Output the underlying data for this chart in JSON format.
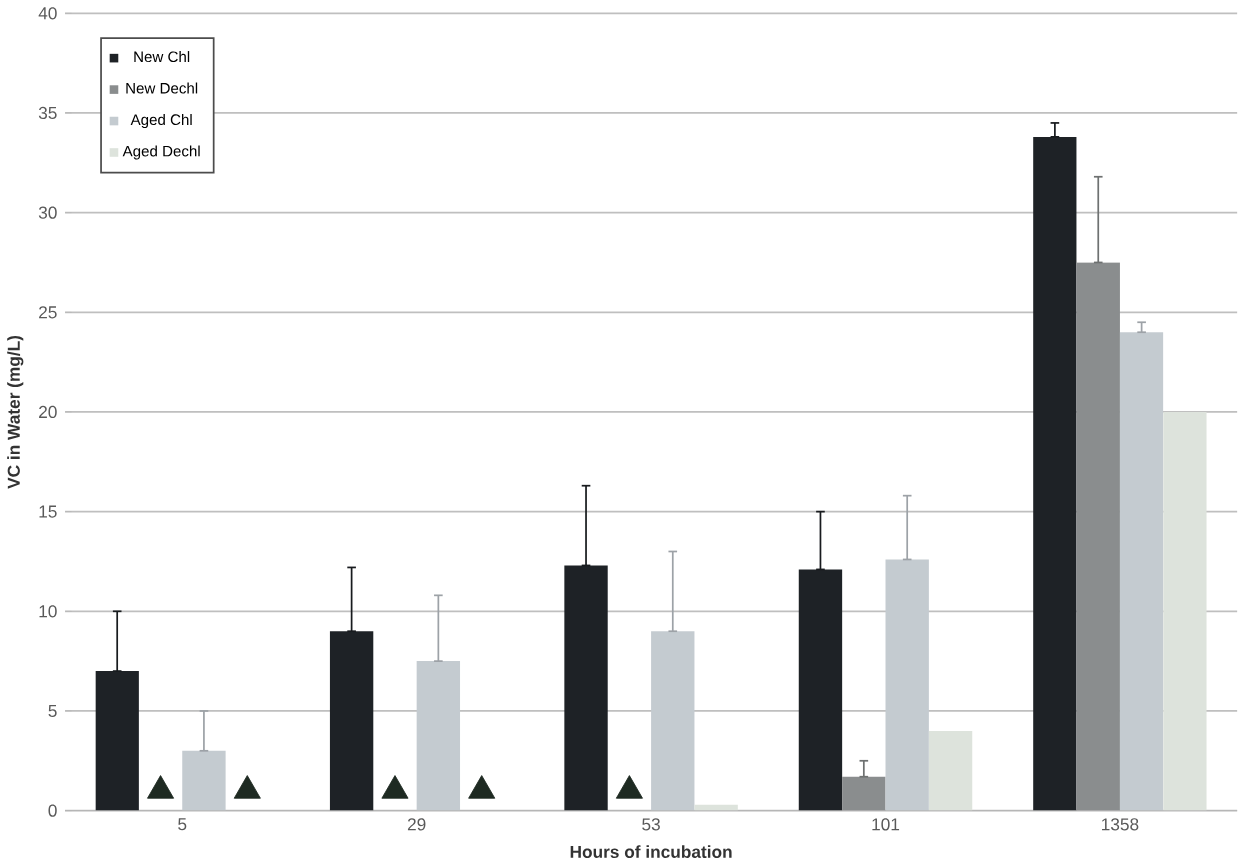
{
  "chart_data": {
    "type": "bar",
    "xlabel": "Hours of incubation",
    "ylabel": "VC in Water (mg/L)",
    "categories": [
      "5",
      "29",
      "53",
      "101",
      "1358"
    ],
    "series": [
      {
        "name": "New Chl",
        "color": "#1e2226",
        "values": [
          7.0,
          9.0,
          12.3,
          12.1,
          33.8
        ],
        "errors": [
          [
            7.0,
            10.0
          ],
          [
            9.0,
            12.2
          ],
          [
            12.3,
            16.3
          ],
          [
            12.1,
            15.0
          ],
          [
            33.8,
            34.5
          ]
        ]
      },
      {
        "name": "New Dechl",
        "color": "#8a8d8e",
        "values": [
          null,
          null,
          null,
          1.7,
          27.5
        ],
        "errors": [
          null,
          null,
          null,
          [
            1.7,
            2.5
          ],
          [
            27.5,
            31.8
          ]
        ]
      },
      {
        "name": "Aged Chl",
        "color": "#c4cbd0",
        "values": [
          3.0,
          7.5,
          9.0,
          12.6,
          24.0
        ],
        "errors": [
          [
            3.0,
            5.0
          ],
          [
            7.5,
            10.8
          ],
          [
            9.0,
            13.0
          ],
          [
            12.6,
            15.8
          ],
          [
            24.0,
            24.5
          ]
        ]
      },
      {
        "name": "Aged Dechl",
        "color": "#dde3dc",
        "values": [
          null,
          null,
          0.3,
          4.0,
          20.0
        ]
      },
      {
        "type": "scatter",
        "color": "#1e2a22",
        "marker": "triangle",
        "x": [
          "5",
          "29",
          "53"
        ],
        "values": [
          1.0,
          1.0,
          1.0
        ]
      },
      {
        "type": "scatter",
        "color": "#1e2a22",
        "marker": "triangle",
        "x": [
          "5",
          "29"
        ],
        "values": [
          1.0,
          1.0
        ]
      }
    ],
    "ylim": [
      0,
      40
    ],
    "yticks": [
      0,
      5,
      10,
      15,
      20,
      25,
      30,
      35,
      40
    ],
    "grid": "y",
    "legend": "top left"
  }
}
